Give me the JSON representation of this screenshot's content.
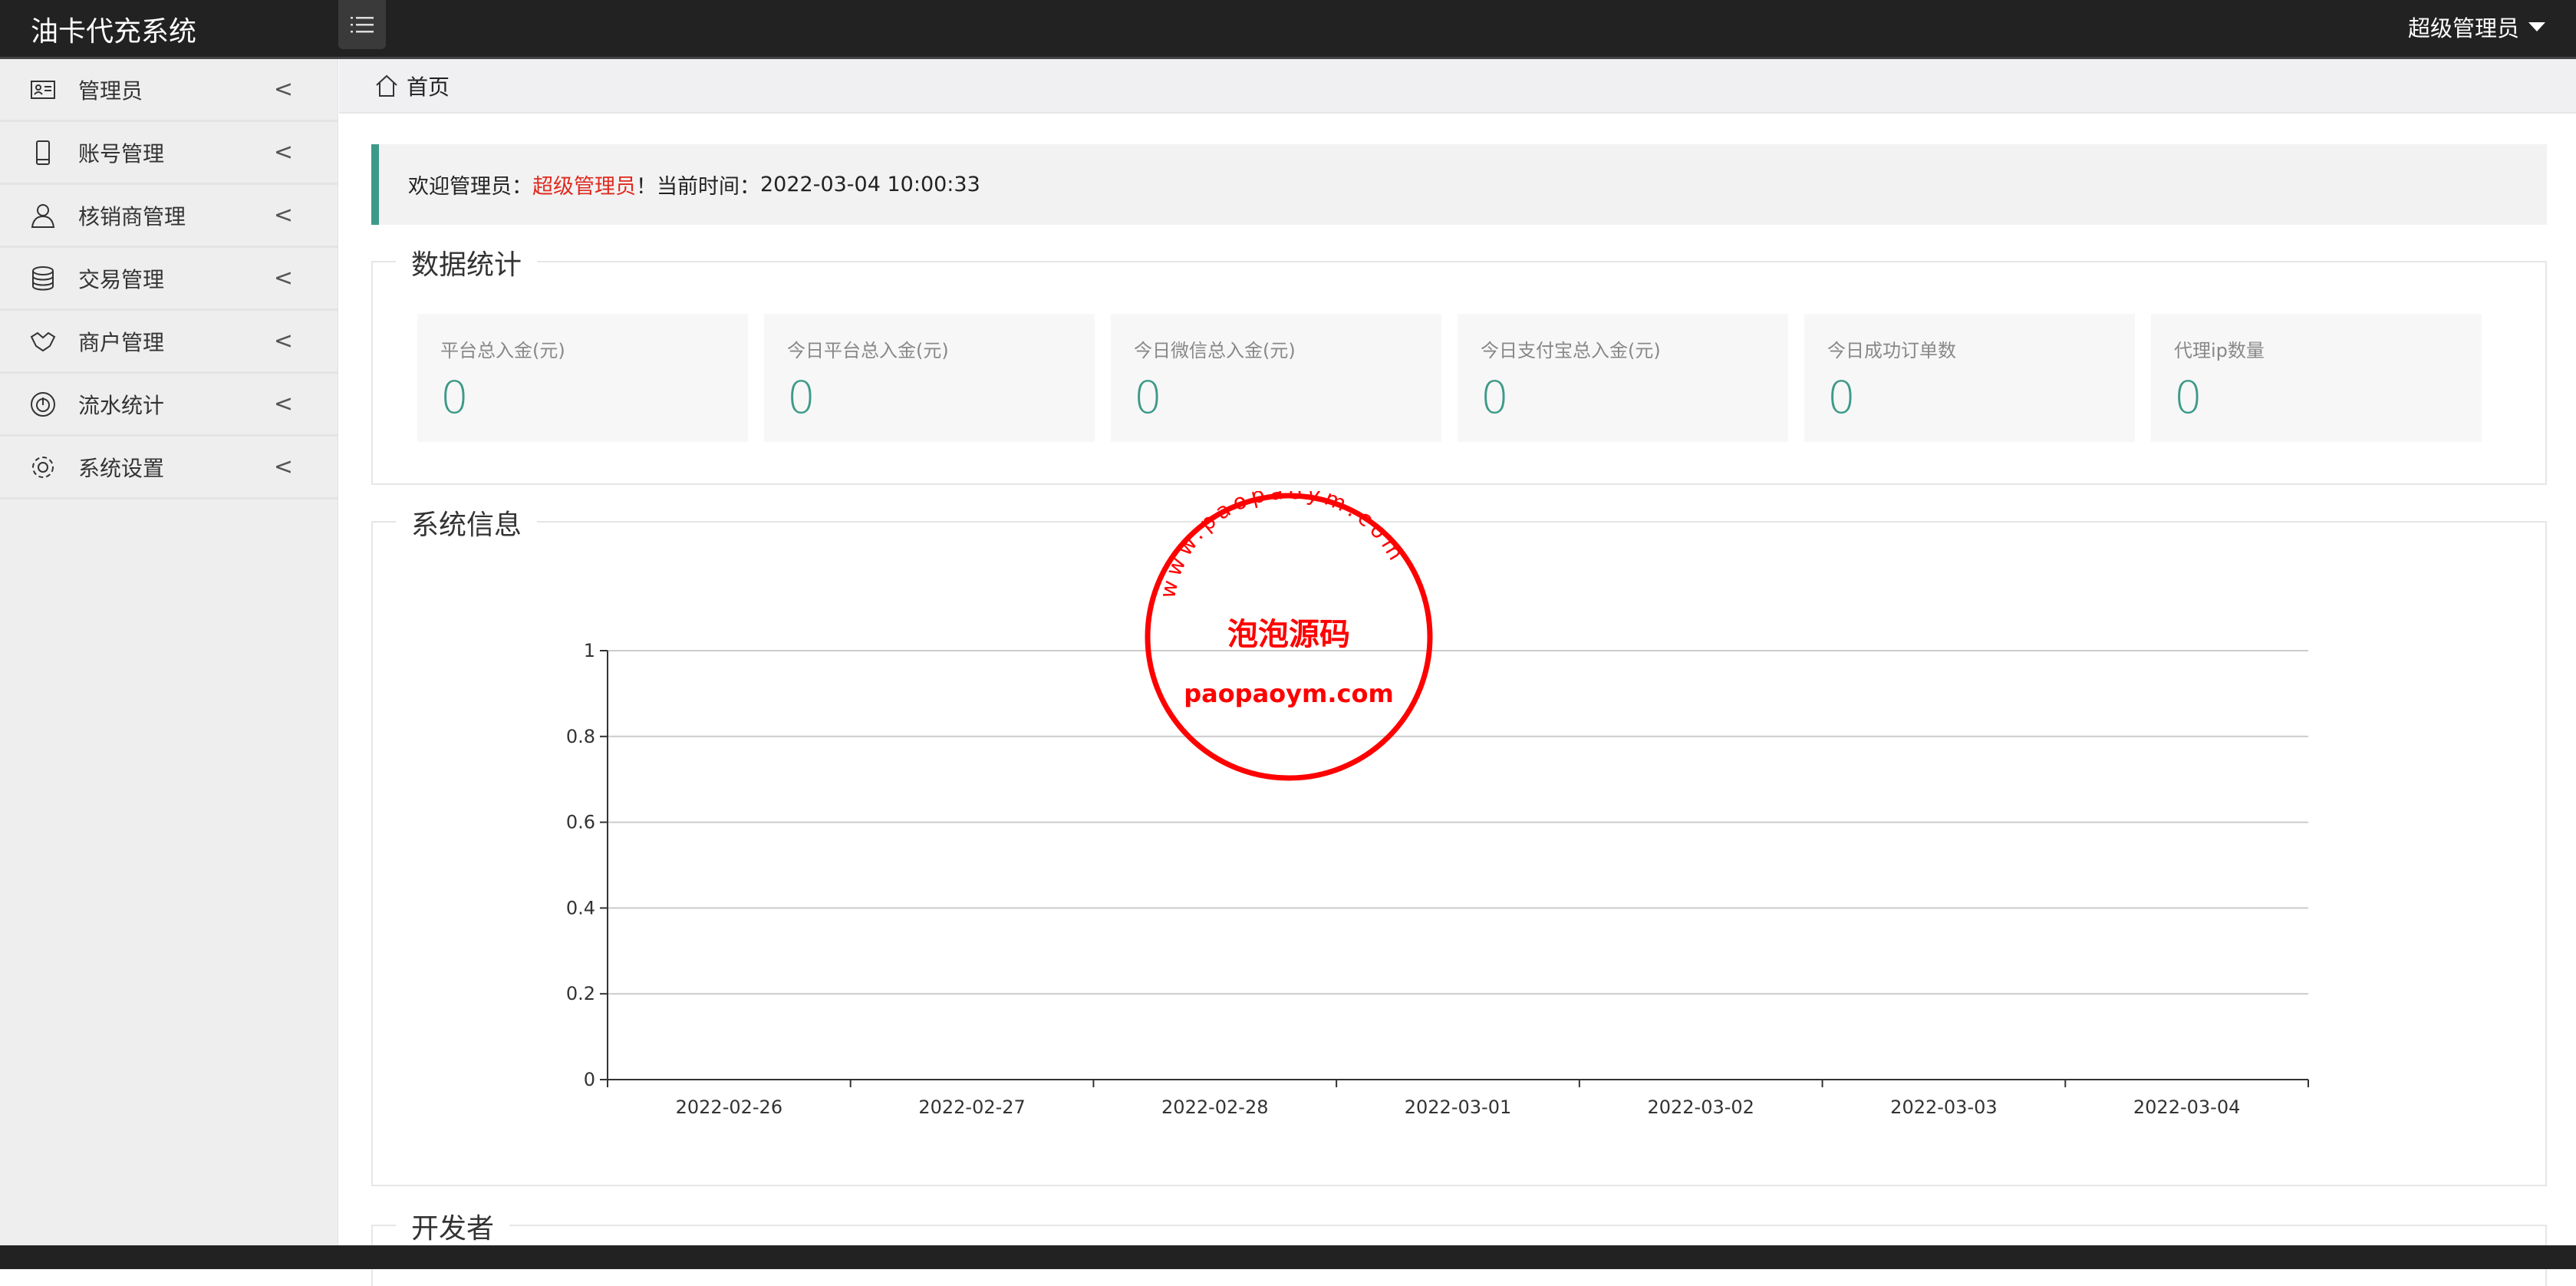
{
  "header": {
    "title": "油卡代充系统",
    "menu_icon": "list-icon",
    "user": "超级管理员"
  },
  "sidebar": {
    "items": [
      {
        "label": "管理员",
        "icon": "id-card-icon"
      },
      {
        "label": "账号管理",
        "icon": "phone-icon"
      },
      {
        "label": "核销商管理",
        "icon": "user-icon"
      },
      {
        "label": "交易管理",
        "icon": "database-icon"
      },
      {
        "label": "商户管理",
        "icon": "handshake-icon"
      },
      {
        "label": "流水统计",
        "icon": "gauge-icon"
      },
      {
        "label": "系统设置",
        "icon": "gear-icon"
      }
    ]
  },
  "breadcrumb": {
    "home": "首页"
  },
  "welcome": {
    "prefix": "欢迎管理员：",
    "name": "超级管理员",
    "mid": "！当前时间：",
    "time": "2022-03-04 10:00:33"
  },
  "stats": {
    "title": "数据统计",
    "cards": [
      {
        "label": "平台总入金(元)",
        "value": "0"
      },
      {
        "label": "今日平台总入金(元)",
        "value": "0"
      },
      {
        "label": "今日微信总入金(元)",
        "value": "0"
      },
      {
        "label": "今日支付宝总入金(元)",
        "value": "0"
      },
      {
        "label": "今日成功订单数",
        "value": "0"
      },
      {
        "label": "代理ip数量",
        "value": "0"
      }
    ]
  },
  "sysinfo": {
    "title": "系统信息"
  },
  "developer": {
    "title": "开发者"
  },
  "watermark": {
    "top": "www.paopaoym.com",
    "middle": "泡泡源码",
    "bottom": "paopaoym.com"
  },
  "colors": {
    "accent": "#3d9a88",
    "highlight": "#e0291f",
    "stamp": "#ff0000"
  },
  "chart_data": {
    "type": "line",
    "categories": [
      "2022-02-26",
      "2022-02-27",
      "2022-02-28",
      "2022-03-01",
      "2022-03-02",
      "2022-03-03",
      "2022-03-04"
    ],
    "values": [
      0,
      0,
      0,
      0,
      0,
      0,
      0
    ],
    "ylim": [
      0,
      1
    ],
    "yticks": [
      "0",
      "0.2",
      "0.4",
      "0.6",
      "0.8",
      "1"
    ],
    "grid": true
  }
}
